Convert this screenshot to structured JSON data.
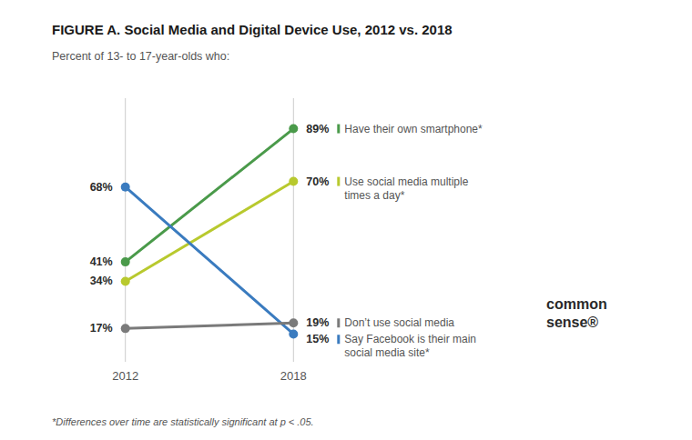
{
  "chart_data": {
    "type": "slope",
    "title": "FIGURE A. Social Media and Digital Device Use, 2012 vs. 2018",
    "subtitle": "Percent of 13- to 17-year-olds who:",
    "footnote": "*Differences over time are statistically significant at p < .05.",
    "annotations": [
      "common\nsense®"
    ],
    "categories": [
      "2012",
      "2018"
    ],
    "ylim": [
      5,
      100
    ],
    "tick_labels": "x",
    "grid": false,
    "data_labels": true,
    "series": [
      {
        "name": "Have their own smartphone*",
        "color": "#4a9a4a",
        "values": [
          41,
          89
        ],
        "value_labels": [
          "41%",
          "89%"
        ]
      },
      {
        "name": "Use social media multiple\ntimes a day*",
        "color": "#b8c92e",
        "values": [
          34,
          70
        ],
        "value_labels": [
          "34%",
          "70%"
        ]
      },
      {
        "name": "Say Facebook is their main\nsocial media site*",
        "color": "#3a7bbf",
        "values": [
          68,
          15
        ],
        "value_labels": [
          "68%",
          "15%"
        ]
      },
      {
        "name": "Don’t use social media",
        "color": "#7a7a7a",
        "values": [
          17,
          19
        ],
        "value_labels": [
          "17%",
          "19%"
        ]
      }
    ]
  }
}
